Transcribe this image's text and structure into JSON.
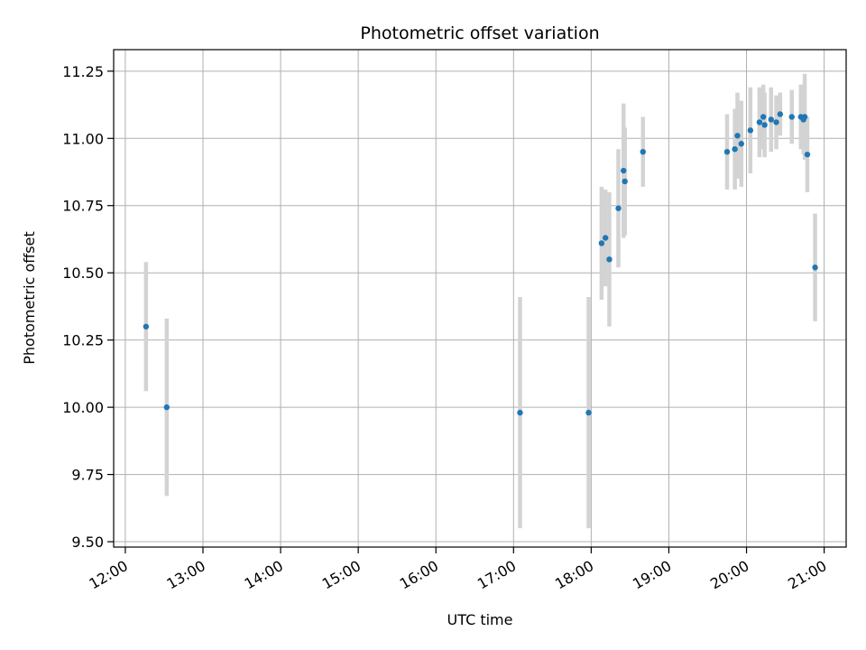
{
  "chart_data": {
    "type": "scatter",
    "title": "Photometric offset variation",
    "xlabel": "UTC time",
    "ylabel": "Photometric offset",
    "x_tick_labels": [
      "12:00",
      "13:00",
      "14:00",
      "15:00",
      "16:00",
      "17:00",
      "18:00",
      "19:00",
      "20:00",
      "21:00"
    ],
    "x_tick_times": [
      "12:00",
      "13:00",
      "14:00",
      "15:00",
      "16:00",
      "17:00",
      "18:00",
      "19:00",
      "20:00",
      "21:00"
    ],
    "xlim": [
      "11:51",
      "21:17"
    ],
    "y_ticks": [
      9.5,
      9.75,
      10.0,
      10.25,
      10.5,
      10.75,
      11.0,
      11.25
    ],
    "y_tick_labels": [
      "9.50",
      "9.75",
      "10.00",
      "10.25",
      "10.50",
      "10.75",
      "11.00",
      "11.25"
    ],
    "ylim": [
      9.48,
      11.33
    ],
    "grid": true,
    "marker_color": "#1f77b4",
    "errorbar_color": "#d3d3d3",
    "points": [
      {
        "t": "12:16",
        "y": 10.3,
        "err": 0.24
      },
      {
        "t": "12:32",
        "y": 10.0,
        "err": 0.33
      },
      {
        "t": "17:05",
        "y": 9.98,
        "err": 0.43
      },
      {
        "t": "17:58",
        "y": 9.98,
        "err": 0.43
      },
      {
        "t": "18:08",
        "y": 10.61,
        "err": 0.21
      },
      {
        "t": "18:11",
        "y": 10.63,
        "err": 0.18
      },
      {
        "t": "18:14",
        "y": 10.55,
        "err": 0.25
      },
      {
        "t": "18:21",
        "y": 10.74,
        "err": 0.22
      },
      {
        "t": "18:25",
        "y": 10.88,
        "err": 0.25
      },
      {
        "t": "18:26",
        "y": 10.84,
        "err": 0.2
      },
      {
        "t": "18:40",
        "y": 10.95,
        "err": 0.13
      },
      {
        "t": "19:45",
        "y": 10.95,
        "err": 0.14
      },
      {
        "t": "19:51",
        "y": 10.96,
        "err": 0.15
      },
      {
        "t": "19:53",
        "y": 11.01,
        "err": 0.16
      },
      {
        "t": "19:56",
        "y": 10.98,
        "err": 0.16
      },
      {
        "t": "20:03",
        "y": 11.03,
        "err": 0.16
      },
      {
        "t": "20:10",
        "y": 11.06,
        "err": 0.13
      },
      {
        "t": "20:13",
        "y": 11.08,
        "err": 0.12
      },
      {
        "t": "20:14",
        "y": 11.05,
        "err": 0.12
      },
      {
        "t": "20:19",
        "y": 11.07,
        "err": 0.12
      },
      {
        "t": "20:23",
        "y": 11.06,
        "err": 0.1
      },
      {
        "t": "20:26",
        "y": 11.09,
        "err": 0.08
      },
      {
        "t": "20:35",
        "y": 11.08,
        "err": 0.1
      },
      {
        "t": "20:42",
        "y": 11.08,
        "err": 0.12
      },
      {
        "t": "20:44",
        "y": 11.07,
        "err": 0.13
      },
      {
        "t": "20:45",
        "y": 11.08,
        "err": 0.16
      },
      {
        "t": "20:47",
        "y": 10.94,
        "err": 0.14
      },
      {
        "t": "20:53",
        "y": 10.52,
        "err": 0.2
      }
    ]
  }
}
